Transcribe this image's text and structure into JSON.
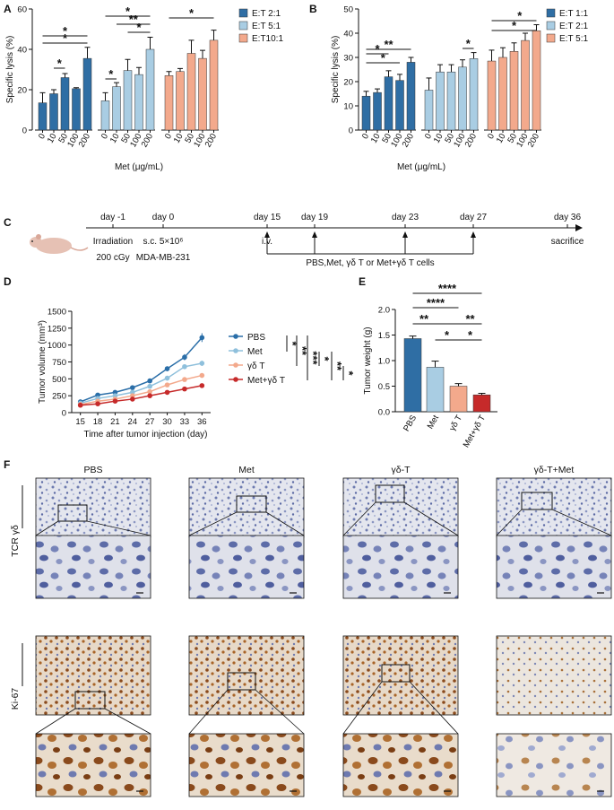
{
  "panels": {
    "a": "A",
    "b": "B",
    "c": "C",
    "d": "D",
    "e": "E",
    "f": "F"
  },
  "colors": {
    "dark_blue": "#2f6ea4",
    "light_blue": "#a9cde3",
    "salmon": "#f3a98c",
    "red": "#c62a2a",
    "line_pbs": "#2a6ea8",
    "line_met": "#8fc0dc",
    "line_gdt": "#f3a98c",
    "line_combo": "#c62a2a"
  },
  "chart_data": [
    {
      "id": "A",
      "type": "bar",
      "ylabel": "Specific lysis (%)",
      "xlabel": "Met (μg/mL)",
      "ylim": [
        0,
        60
      ],
      "yticks": [
        0,
        20,
        40,
        60
      ],
      "categories": [
        "0",
        "10",
        "50",
        "100",
        "200"
      ],
      "series": [
        {
          "name": "E:T 2:1",
          "values": [
            13.5,
            18,
            26,
            20.5,
            35.5
          ],
          "errors": [
            5,
            2,
            2,
            0.5,
            5.5
          ]
        },
        {
          "name": "E:T 5:1",
          "values": [
            14.5,
            21.5,
            29.5,
            27.5,
            40
          ],
          "errors": [
            4,
            2,
            5.5,
            3.5,
            6
          ]
        },
        {
          "name": "E:T10:1",
          "values": [
            27,
            29,
            38,
            35.5,
            44.5
          ],
          "errors": [
            2,
            1.5,
            6.5,
            4,
            5
          ]
        }
      ],
      "significance": [
        "*",
        "*",
        "*",
        "*",
        "**",
        "*",
        "*",
        "*"
      ]
    },
    {
      "id": "B",
      "type": "bar",
      "ylabel": "Specific lysis (%)",
      "xlabel": "Met (μg/mL)",
      "ylim": [
        0,
        50
      ],
      "yticks": [
        0,
        10,
        20,
        30,
        40,
        50
      ],
      "categories": [
        "0",
        "10",
        "50",
        "100",
        "200"
      ],
      "series": [
        {
          "name": "E:T 1:1",
          "values": [
            14,
            15.5,
            22,
            20.5,
            28
          ],
          "errors": [
            2,
            1.5,
            2.5,
            2.5,
            2
          ]
        },
        {
          "name": "E:T 2:1",
          "values": [
            16.5,
            24,
            24,
            26,
            29.5
          ],
          "errors": [
            5,
            3,
            3,
            3,
            2.5
          ]
        },
        {
          "name": "E:T 5:1",
          "values": [
            28.5,
            30,
            32.5,
            37,
            41
          ],
          "errors": [
            4.5,
            4,
            3.5,
            3,
            2.5
          ]
        }
      ],
      "significance": [
        "*",
        "*",
        "**",
        "*",
        "*",
        "*"
      ]
    },
    {
      "id": "D",
      "type": "line",
      "ylabel": "Tumor volume (mm³)",
      "xlabel": "Time after tumor injection (day)",
      "ylim": [
        0,
        1500
      ],
      "yticks": [
        0,
        250,
        500,
        750,
        1000,
        1250,
        1500
      ],
      "x": [
        15,
        18,
        21,
        24,
        27,
        30,
        33,
        36
      ],
      "series": [
        {
          "name": "PBS",
          "values": [
            160,
            260,
            300,
            370,
            470,
            650,
            820,
            1110
          ],
          "errors": [
            15,
            20,
            20,
            25,
            30,
            35,
            45,
            65
          ]
        },
        {
          "name": "Met",
          "values": [
            140,
            210,
            250,
            300,
            390,
            510,
            680,
            730
          ],
          "errors": [
            10,
            15,
            20,
            20,
            25,
            35,
            35,
            40
          ]
        },
        {
          "name": "γδ T",
          "values": [
            120,
            170,
            200,
            250,
            310,
            410,
            490,
            550
          ],
          "errors": [
            10,
            10,
            15,
            15,
            20,
            20,
            25,
            30
          ]
        },
        {
          "name": "Met+γδ T",
          "values": [
            110,
            130,
            170,
            200,
            250,
            300,
            350,
            400
          ],
          "errors": [
            8,
            10,
            10,
            12,
            15,
            15,
            20,
            25
          ]
        }
      ],
      "significance": [
        "*",
        "**",
        "***",
        "*",
        "**",
        "*"
      ]
    },
    {
      "id": "E",
      "type": "bar",
      "ylabel": "Tumor weight (g)",
      "ylim": [
        0,
        2.0
      ],
      "yticks": [
        "0.0",
        "0.5",
        "1.0",
        "1.5",
        "2.0"
      ],
      "categories": [
        "PBS",
        "Met",
        "γδ T",
        "Met+γδ T"
      ],
      "values": [
        1.43,
        0.87,
        0.5,
        0.33
      ],
      "errors": [
        0.05,
        0.12,
        0.05,
        0.03
      ],
      "significance": [
        "****",
        "****",
        "**",
        "**",
        "*",
        "*"
      ]
    }
  ],
  "schedule": {
    "events": [
      {
        "day": "day -1",
        "below1": "Irradiation",
        "below2": "200 cGy"
      },
      {
        "day": "day 0",
        "below1": "s.c. 5×10⁶",
        "below2": "MDA-MB-231"
      },
      {
        "day": "day 15",
        "below1": "i.v.",
        "below2": ""
      },
      {
        "day": "day 19",
        "below1": "",
        "below2": ""
      },
      {
        "day": "day 23",
        "below1": "",
        "below2": ""
      },
      {
        "day": "day 27",
        "below1": "",
        "below2": ""
      },
      {
        "day": "day 36",
        "below1": "sacrifice",
        "below2": ""
      }
    ],
    "treatment": "PBS,Met, γδ T or Met+γδ T cells"
  },
  "histology": {
    "columns": [
      "PBS",
      "Met",
      "γδ-T",
      "γδ-T+Met"
    ],
    "rows": [
      "TCR γδ",
      "Ki-67"
    ]
  }
}
